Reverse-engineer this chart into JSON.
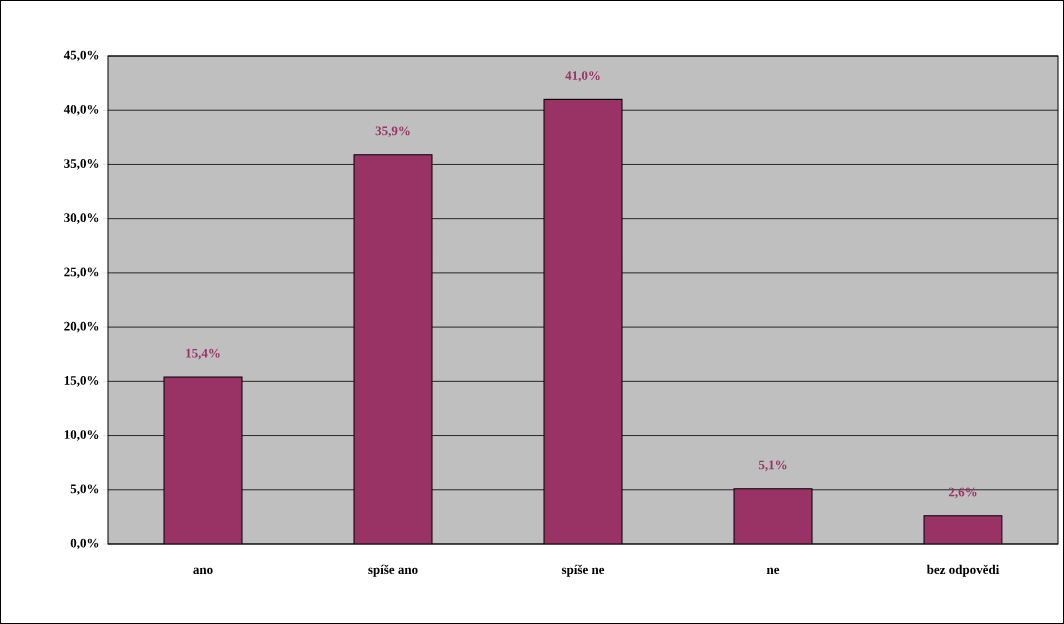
{
  "chart_data": {
    "type": "bar",
    "categories": [
      "ano",
      "spíše ano",
      "spíše ne",
      "ne",
      "bez odpovědi"
    ],
    "values": [
      15.4,
      35.9,
      41.0,
      5.1,
      2.6
    ],
    "value_labels": [
      "15,4%",
      "35,9%",
      "41,0%",
      "5,1%",
      "2,6%"
    ],
    "color": "#993366",
    "ylim": [
      0,
      45
    ],
    "yticks": [
      {
        "value": 0,
        "label": "0,0%"
      },
      {
        "value": 5,
        "label": "5,0%"
      },
      {
        "value": 10,
        "label": "10,0%"
      },
      {
        "value": 15,
        "label": "15,0%"
      },
      {
        "value": 20,
        "label": "20,0%"
      },
      {
        "value": 25,
        "label": "25,0%"
      },
      {
        "value": 30,
        "label": "30,0%"
      },
      {
        "value": 35,
        "label": "35,0%"
      },
      {
        "value": 40,
        "label": "40,0%"
      },
      {
        "value": 45,
        "label": "45,0%"
      }
    ],
    "grid": "y"
  }
}
